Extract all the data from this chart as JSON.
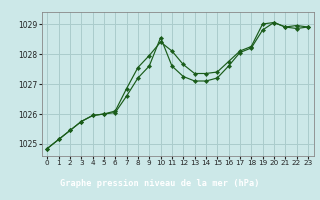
{
  "title": "Graphe pression niveau de la mer (hPa)",
  "background_color": "#cce8e8",
  "plot_bg_color": "#cce8e8",
  "grid_color": "#aacccc",
  "line_color": "#1a5c1a",
  "marker_color": "#1a5c1a",
  "label_bg_color": "#2d6b2d",
  "label_text_color": "#ffffff",
  "xlim": [
    -0.5,
    23.5
  ],
  "ylim": [
    1024.6,
    1029.4
  ],
  "yticks": [
    1025,
    1026,
    1027,
    1028,
    1029
  ],
  "xticks": [
    0,
    1,
    2,
    3,
    4,
    5,
    6,
    7,
    8,
    9,
    10,
    11,
    12,
    13,
    14,
    15,
    16,
    17,
    18,
    19,
    20,
    21,
    22,
    23
  ],
  "series1_x": [
    0,
    1,
    2,
    3,
    4,
    5,
    6,
    7,
    8,
    9,
    10,
    11,
    12,
    13,
    14,
    15,
    16,
    17,
    18,
    19,
    20,
    21,
    22,
    23
  ],
  "series1_y": [
    1024.85,
    1025.15,
    1025.45,
    1025.75,
    1025.95,
    1026.0,
    1026.1,
    1026.85,
    1027.55,
    1027.95,
    1028.4,
    1028.1,
    1027.65,
    1027.35,
    1027.35,
    1027.4,
    1027.75,
    1028.1,
    1028.25,
    1029.0,
    1029.05,
    1028.9,
    1028.95,
    1028.9
  ],
  "series2_x": [
    0,
    1,
    2,
    3,
    4,
    5,
    6,
    7,
    8,
    9,
    10,
    11,
    12,
    13,
    14,
    15,
    16,
    17,
    18,
    19,
    20,
    21,
    22,
    23
  ],
  "series2_y": [
    1024.85,
    1025.15,
    1025.45,
    1025.75,
    1025.95,
    1026.0,
    1026.05,
    1026.6,
    1027.2,
    1027.6,
    1028.55,
    1027.6,
    1027.25,
    1027.1,
    1027.1,
    1027.2,
    1027.6,
    1028.05,
    1028.2,
    1028.8,
    1029.05,
    1028.9,
    1028.85,
    1028.9
  ],
  "tick_fontsize": 5.5,
  "label_fontsize": 6.2
}
